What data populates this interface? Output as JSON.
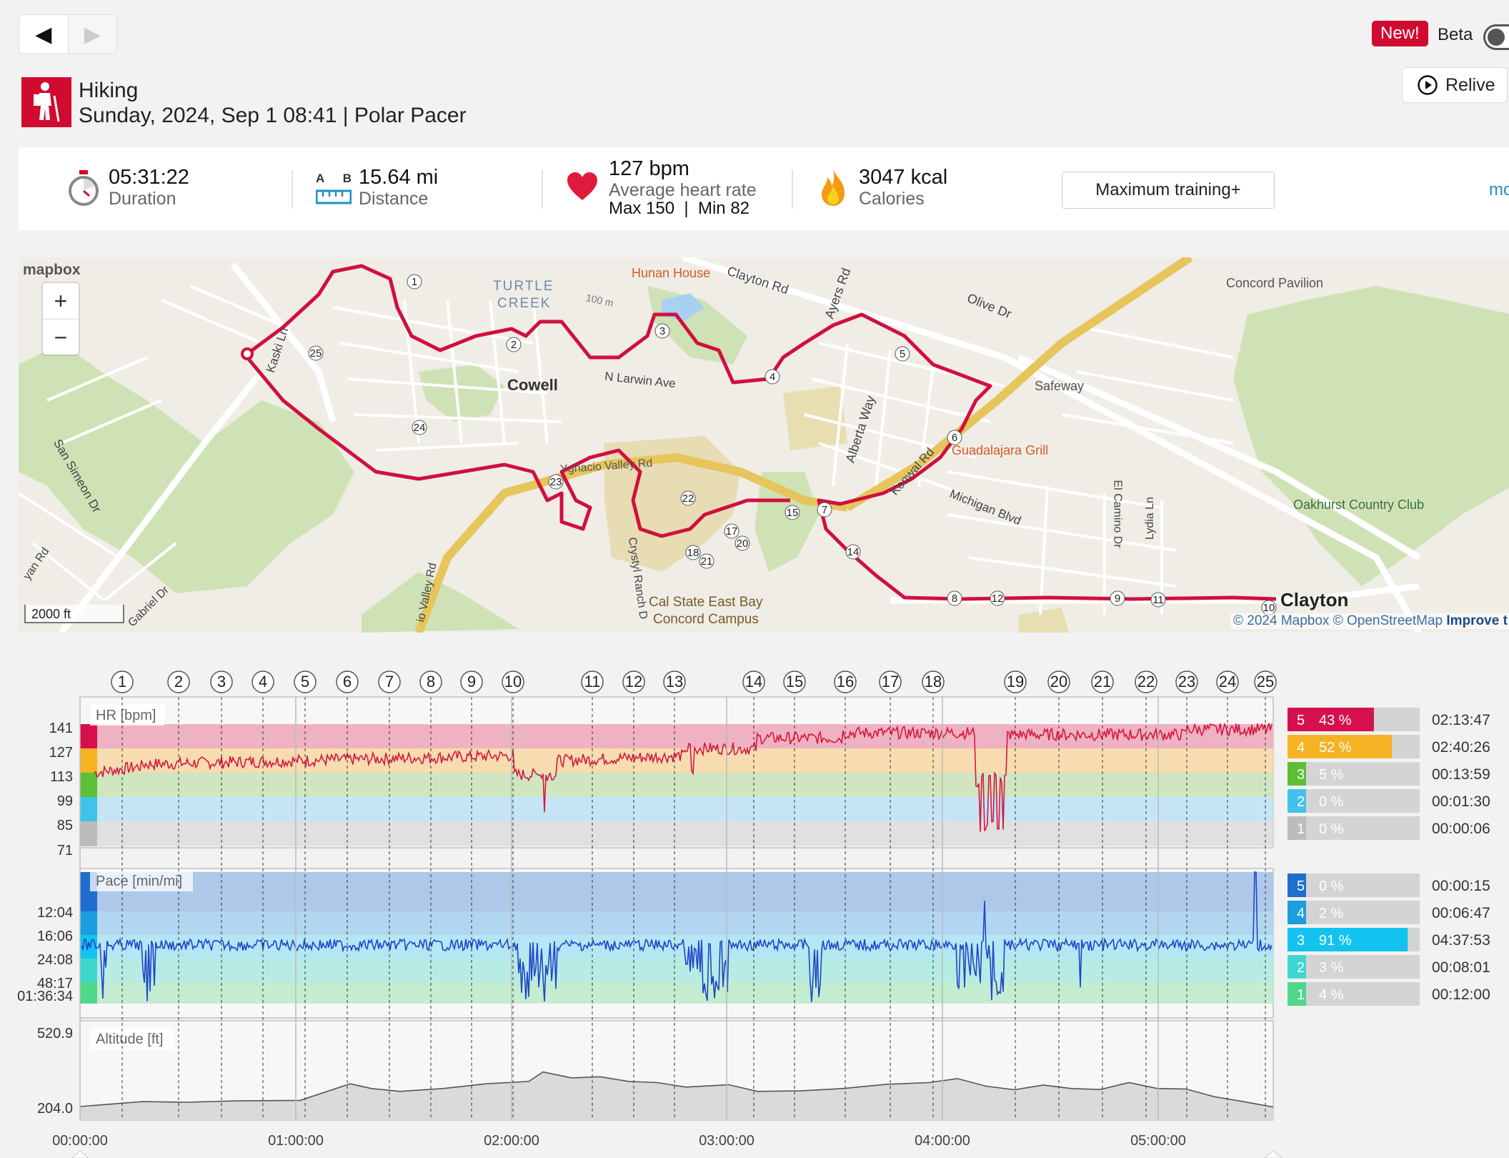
{
  "nav": {
    "prev_icon": "◀",
    "next_icon": "▶"
  },
  "badge": {
    "new": "New!",
    "beta": "Beta"
  },
  "relive": {
    "label": "Relive"
  },
  "session": {
    "sport": "Hiking",
    "date_device": "Sunday, 2024, Sep 1 08:41 | Polar Pacer"
  },
  "summary": {
    "duration": {
      "value": "05:31:22",
      "label": "Duration"
    },
    "distance": {
      "value": "15.64 mi",
      "label": "Distance",
      "a": "A",
      "b": "B"
    },
    "heart": {
      "value": "127 bpm",
      "label": "Average heart rate",
      "max": "Max 150",
      "sep": "|",
      "min": "Min 82"
    },
    "calories": {
      "value": "3047 kcal",
      "label": "Calories"
    },
    "training_benefit": "Maximum training+",
    "more": "mo"
  },
  "map": {
    "logo": "mapbox",
    "zoom_in": "+",
    "zoom_out": "−",
    "scale": "2000 ft",
    "attribution": "© 2024 Mapbox © OpenStreetMap",
    "improve": "Improve t",
    "labels": {
      "turtle_creek_1": "TURTLE",
      "turtle_creek_2": "CREEK",
      "hunan_house": "Hunan House",
      "clayton_rd": "Clayton Rd",
      "ayers_rd": "Ayers Rd",
      "olive_dr": "Olive Dr",
      "concord_pavilion": "Concord Pavilion",
      "cowell": "Cowell",
      "n_larwin_ave": "N Larwin Ave",
      "kaski_ln": "Kaski Ln",
      "alberta_way": "Alberta Way",
      "safeway": "Safeway",
      "guadalajara_grill": "Guadalajara Grill",
      "kenwal_rd": "Kenwal Rd",
      "ygnacio_valley_rd": "Ygnacio Valley Rd",
      "michigan_blvd": "Michigan Blvd",
      "el_camino_dr": "El Camino Dr",
      "lydia_ln": "Lydia Ln",
      "oakhurst": "Oakhurst Country Club",
      "san_simeon_dr": "San Simeon Dr",
      "ryan_rd": "yan Rd",
      "gabriel_dr": "Gabriel Dr",
      "valley_rd": "io Valley Rd",
      "crystyl_ranch": "Crystyl Ranch D",
      "cal_state_1": "Cal State East Bay",
      "cal_state_2": "Concord Campus",
      "clayton": "Clayton",
      "elevation": "100 m"
    }
  },
  "laps": [
    "1",
    "2",
    "3",
    "4",
    "5",
    "6",
    "7",
    "8",
    "9",
    "10",
    "11",
    "12",
    "13",
    "14",
    "15",
    "16",
    "17",
    "18",
    "19",
    "20",
    "21",
    "22",
    "23",
    "24",
    "25"
  ],
  "hr": {
    "title": "HR [bpm]",
    "ticks": [
      "141",
      "127",
      "113",
      "99",
      "85",
      "71"
    ],
    "zones": [
      {
        "zone": "5",
        "pct": "43 %",
        "time": "02:13:47",
        "color": "#d6104f"
      },
      {
        "zone": "4",
        "pct": "52 %",
        "time": "02:40:26",
        "color": "#f5b324"
      },
      {
        "zone": "3",
        "pct": "5 %",
        "time": "00:13:59",
        "color": "#5cbf35"
      },
      {
        "zone": "2",
        "pct": "0 %",
        "time": "00:01:30",
        "color": "#41c2ea"
      },
      {
        "zone": "1",
        "pct": "0 %",
        "time": "00:00:06",
        "color": "#bcbcbc"
      }
    ]
  },
  "pace": {
    "title": "Pace [min/mi]",
    "ticks": [
      "12:04",
      "16:06",
      "24:08",
      "48:17",
      "01:36:34"
    ],
    "zones": [
      {
        "zone": "5",
        "pct": "0 %",
        "time": "00:00:15",
        "color": "#1e6ed0"
      },
      {
        "zone": "4",
        "pct": "2 %",
        "time": "00:06:47",
        "color": "#1a9ee0"
      },
      {
        "zone": "3",
        "pct": "91 %",
        "time": "04:37:53",
        "color": "#12c3ef"
      },
      {
        "zone": "2",
        "pct": "3 %",
        "time": "00:08:01",
        "color": "#3fd6cf"
      },
      {
        "zone": "1",
        "pct": "4 %",
        "time": "00:12:00",
        "color": "#4fd88a"
      }
    ]
  },
  "altitude": {
    "title": "Altitude [ft]",
    "ticks": [
      "520.9",
      "204.0"
    ]
  },
  "time_axis": [
    "00:00:00",
    "01:00:00",
    "02:00:00",
    "03:00:00",
    "04:00:00",
    "05:00:00"
  ],
  "colors": {
    "brand": "#d10a30",
    "route": "#d0103f",
    "link": "#1e90ca"
  }
}
